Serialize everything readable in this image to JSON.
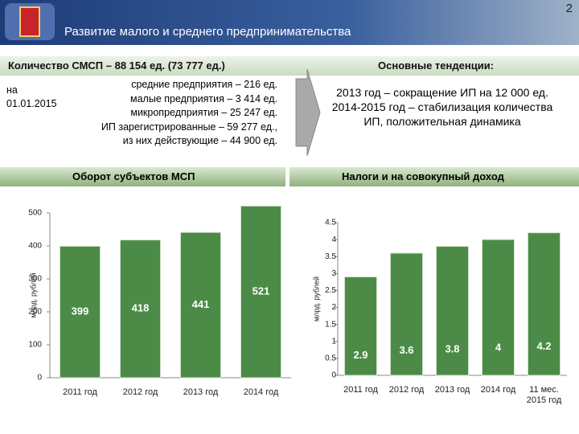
{
  "slide_number": "2",
  "header": {
    "title": "Развитие малого и среднего предпринимательства"
  },
  "summary": {
    "title": "Количество СМСП – 88 154 ед. (73 777 ед.)",
    "date_lines": [
      "на",
      "01.01.2015"
    ],
    "items": [
      "средние предприятия – 216 ед.",
      "малые предприятия – 3 414 ед.",
      "микропредприятия – 25 247 ед.",
      "ИП зарегистрированные – 59 277 ед.,",
      "из них действующие – 44 900 ед."
    ]
  },
  "trends": {
    "title": "Основные тенденции:",
    "lines": [
      "2013 год – сокращение ИП на 12 000 ед.",
      "2014-2015 год – стабилизация количества",
      "ИП, положительная динамика"
    ]
  },
  "chart_data": [
    {
      "type": "bar",
      "title": "Оборот субъектов МСП",
      "y_label": "млрд. рублей",
      "categories": [
        "2011 год",
        "2012 год",
        "2013 год",
        "2014 год"
      ],
      "values": [
        399,
        418,
        441,
        521
      ],
      "color": "#4c8b47",
      "ylim": [
        0,
        500
      ],
      "yticks": [
        0,
        100,
        200,
        300,
        400,
        500
      ]
    },
    {
      "type": "bar",
      "title": "Налоги и на совокупный доход",
      "y_label": "млрд. рублей",
      "categories": [
        "2011 год",
        "2012 год",
        "2013 год",
        "2014 год",
        "11 мес. 2015 год"
      ],
      "values": [
        2.9,
        3.6,
        3.8,
        4,
        4.2
      ],
      "color": "#4c8b47",
      "ylim": [
        0,
        4.5
      ],
      "yticks": [
        0,
        0.5,
        1,
        1.5,
        2,
        2.5,
        3,
        3.5,
        4,
        4.5
      ]
    }
  ]
}
